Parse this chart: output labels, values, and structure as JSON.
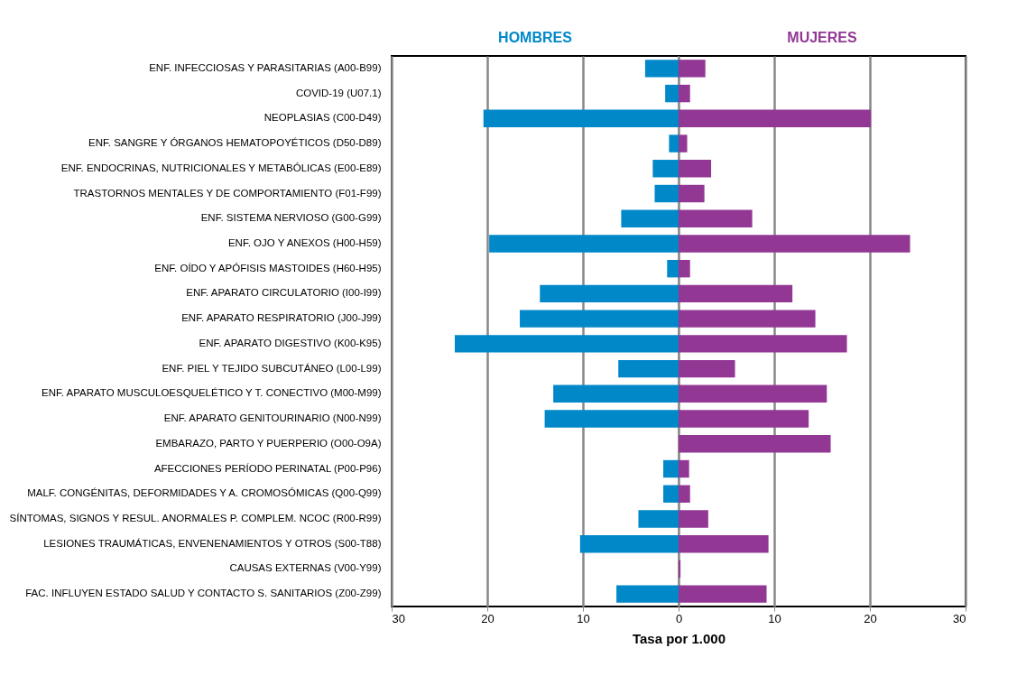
{
  "chart_data": {
    "type": "bar",
    "orientation": "horizontal",
    "xlabel": "Tasa por 1.000",
    "categories": [
      "ENF. INFECCIOSAS Y PARASITARIAS (A00-B99)",
      "COVID-19 (U07.1)",
      "NEOPLASIAS (C00-D49)",
      "ENF. SANGRE Y ÓRGANOS HEMATOPOYÉTICOS (D50-D89)",
      "ENF. ENDOCRINAS, NUTRICIONALES Y METABÓLICAS (E00-E89)",
      "TRASTORNOS MENTALES Y DE COMPORTAMIENTO (F01-F99)",
      "ENF.  SISTEMA NERVIOSO (G00-G99)",
      "ENF.  OJO Y  ANEXOS (H00-H59)",
      "ENF. OÍDO Y  APÓFISIS MASTOIDES (H60-H95)",
      "ENF. APARATO CIRCULATORIO (I00-I99)",
      "ENF. APARATO RESPIRATORIO (J00-J99)",
      "ENF. APARATO DIGESTIVO (K00-K95)",
      "ENF. PIEL Y TEJIDO SUBCUTÁNEO (L00-L99)",
      "ENF. APARATO MUSCULOESQUELÉTICO Y  T. CONECTIVO (M00-M99)",
      "ENF. APARATO GENITOURINARIO (N00-N99)",
      "EMBARAZO, PARTO Y PUERPERIO (O00-O9A)",
      "AFECCIONES PERÍODO PERINATAL (P00-P96)",
      "MALF. CONGÉNITAS, DEFORMIDADES Y A. CROMOSÓMICAS (Q00-Q99)",
      "SÍNTOMAS, SIGNOS Y RESUL. ANORMALES  P. COMPLEM. NCOC (R00-R99)",
      "LESIONES TRAUMÁTICAS, ENVENENAMIENTOS Y OTROS (S00-T88)",
      "CAUSAS EXTERNAS (V00-Y99)",
      "FAC. INFLUYEN ESTADO SALUD Y CONTACTO S. SANITARIOS (Z00-Z99)"
    ],
    "series": [
      {
        "name": "HOMBRES",
        "color": "#0088c9",
        "values": [
          -3.5,
          -1.4,
          -20.4,
          -1.0,
          -2.7,
          -2.5,
          -6.0,
          -19.8,
          -1.2,
          -14.5,
          -16.6,
          -23.4,
          -6.3,
          -13.1,
          -14.0,
          0,
          -1.6,
          -1.6,
          -4.2,
          -10.3,
          0,
          -6.5
        ]
      },
      {
        "name": "MUJERES",
        "color": "#923894",
        "values": [
          2.8,
          1.2,
          20.1,
          0.9,
          3.4,
          2.7,
          7.7,
          24.2,
          1.2,
          11.9,
          14.3,
          17.6,
          5.9,
          15.5,
          13.6,
          15.9,
          1.1,
          1.2,
          3.1,
          9.4,
          0.2,
          9.2
        ]
      }
    ],
    "xlim": [
      -30,
      30
    ],
    "xticks": [
      {
        "value": -30,
        "label": "30"
      },
      {
        "value": -20,
        "label": "20"
      },
      {
        "value": -10,
        "label": "10"
      },
      0,
      10,
      20,
      30
    ],
    "grid": "x",
    "legend": false,
    "stacked": true
  }
}
